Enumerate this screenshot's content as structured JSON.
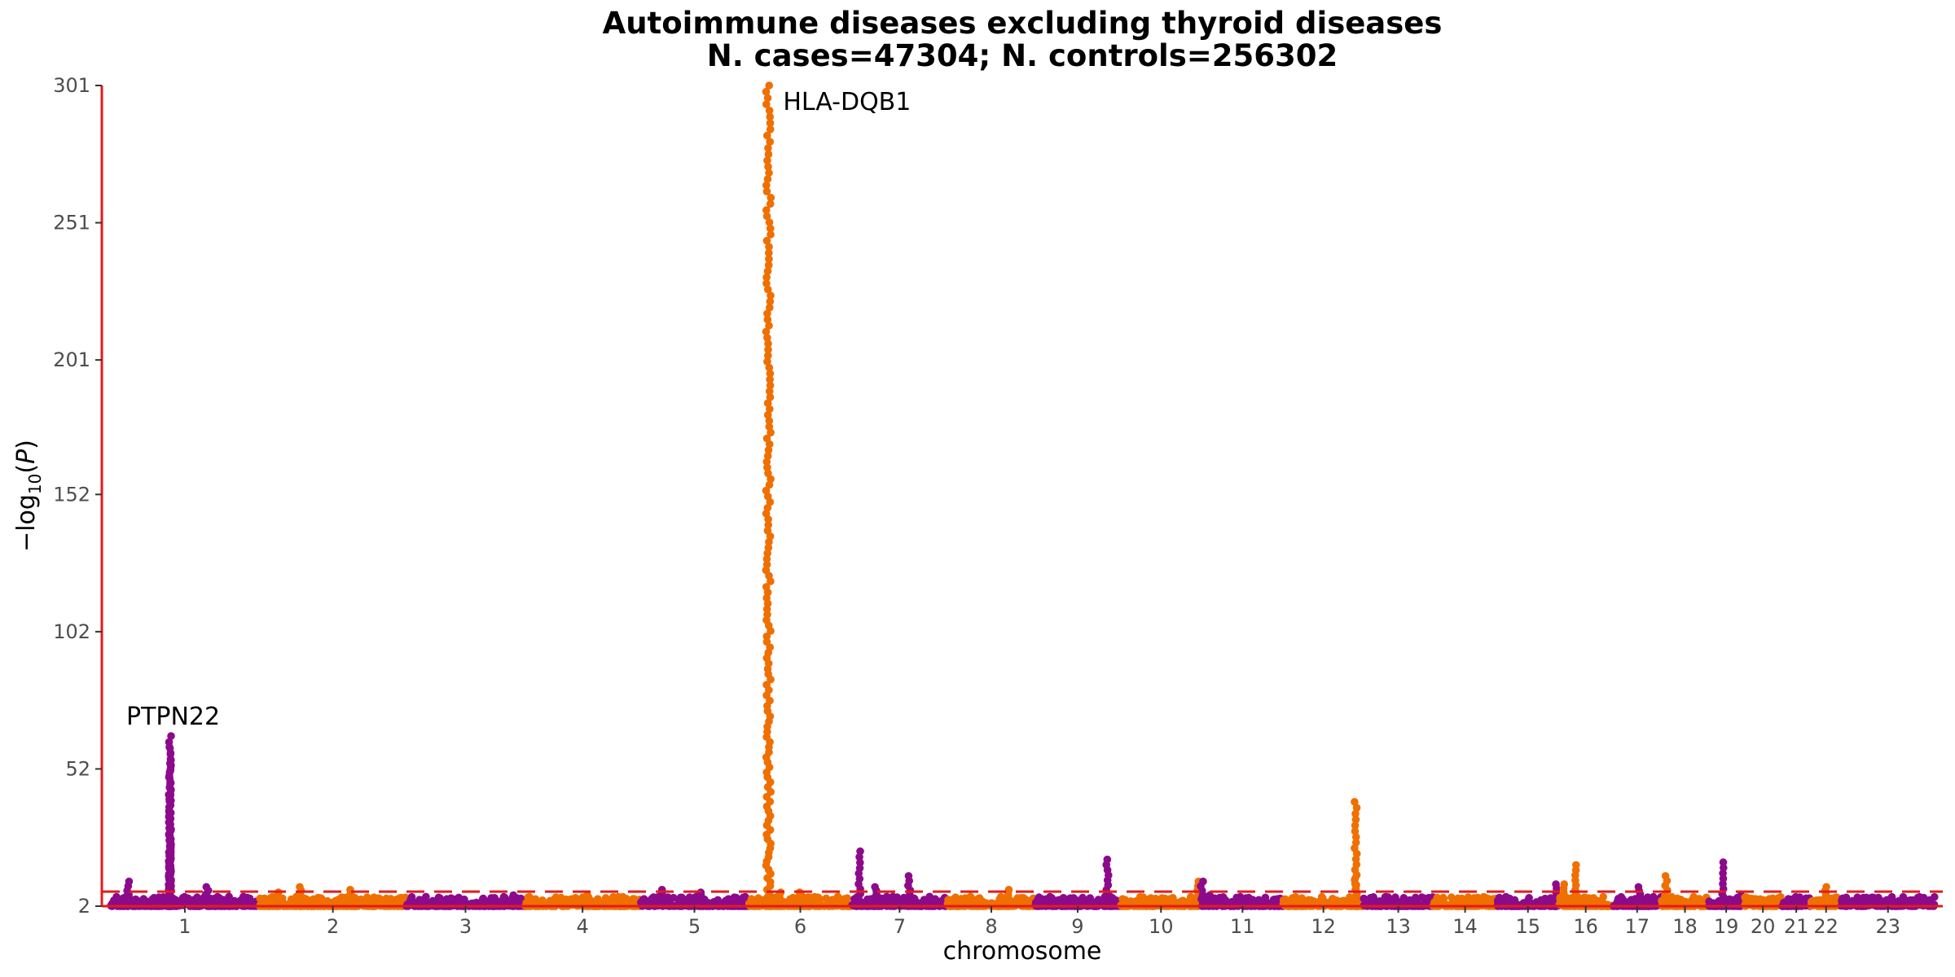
{
  "chart_data": {
    "type": "scatter",
    "subtype": "manhattan",
    "title": "Autoimmune diseases excluding thyroid diseases",
    "subtitle": "N. cases=47304; N. controls=256302",
    "xlabel": "chromosome",
    "ylabel": "−log10(P)",
    "ylim": [
      2,
      301
    ],
    "y_ticks": [
      2,
      52,
      102,
      152,
      201,
      251,
      301
    ],
    "x_ticks": [
      "1",
      "2",
      "3",
      "4",
      "5",
      "6",
      "7",
      "8",
      "9",
      "10",
      "11",
      "12",
      "13",
      "14",
      "15",
      "16",
      "17",
      "18",
      "19",
      "20",
      "21",
      "22",
      "23"
    ],
    "threshold": 7.3,
    "colors": {
      "odd": "#8b0b8b",
      "even": "#ef6f00",
      "axis": "#e41a1c",
      "threshold": "#e41a1c"
    },
    "chromosomes": [
      {
        "chr": "1",
        "len": 249,
        "peaks": [
          [
            0.4,
            64
          ],
          [
            0.4,
            60
          ],
          [
            0.4,
            54
          ],
          [
            0.4,
            36
          ],
          [
            0.4,
            30
          ],
          [
            0.4,
            26
          ],
          [
            0.12,
            11
          ],
          [
            0.65,
            9
          ]
        ]
      },
      {
        "chr": "2",
        "len": 243,
        "peaks": [
          [
            0.28,
            9
          ],
          [
            0.62,
            8
          ],
          [
            0.12,
            7
          ]
        ]
      },
      {
        "chr": "3",
        "len": 198,
        "peaks": [
          [
            0.9,
            6
          ]
        ]
      },
      {
        "chr": "4",
        "len": 191,
        "peaks": [
          [
            0.55,
            6
          ]
        ]
      },
      {
        "chr": "5",
        "len": 181,
        "peaks": [
          [
            0.2,
            8
          ],
          [
            0.55,
            7
          ]
        ]
      },
      {
        "chr": "6",
        "len": 171,
        "peaks": [
          [
            0.19,
            301
          ],
          [
            0.3,
            7
          ],
          [
            0.5,
            7
          ]
        ]
      },
      {
        "chr": "7",
        "len": 159,
        "peaks": [
          [
            0.08,
            22
          ],
          [
            0.6,
            13
          ],
          [
            0.25,
            9
          ]
        ]
      },
      {
        "chr": "8",
        "len": 146,
        "peaks": [
          [
            0.7,
            8
          ]
        ]
      },
      {
        "chr": "9",
        "len": 141,
        "peaks": [
          [
            0.85,
            19
          ]
        ]
      },
      {
        "chr": "10",
        "len": 136,
        "peaks": [
          [
            0.95,
            11
          ]
        ]
      },
      {
        "chr": "11",
        "len": 135,
        "peaks": [
          [
            0.0,
            11
          ],
          [
            0.1,
            6
          ]
        ]
      },
      {
        "chr": "12",
        "len": 134,
        "peaks": [
          [
            0.9,
            40
          ],
          [
            0.9,
            12
          ]
        ]
      },
      {
        "chr": "13",
        "len": 115,
        "peaks": []
      },
      {
        "chr": "14",
        "len": 107,
        "peaks": []
      },
      {
        "chr": "15",
        "len": 102,
        "peaks": [
          [
            0.95,
            10
          ]
        ]
      },
      {
        "chr": "16",
        "len": 90,
        "peaks": [
          [
            0.3,
            17
          ],
          [
            0.1,
            10
          ]
        ]
      },
      {
        "chr": "17",
        "len": 81,
        "peaks": [
          [
            0.55,
            9
          ]
        ]
      },
      {
        "chr": "18",
        "len": 78,
        "peaks": [
          [
            0.1,
            13
          ]
        ]
      },
      {
        "chr": "19",
        "len": 59,
        "peaks": [
          [
            0.4,
            18
          ],
          [
            0.9,
            6
          ]
        ]
      },
      {
        "chr": "20",
        "len": 63,
        "peaks": []
      },
      {
        "chr": "21",
        "len": 48,
        "peaks": []
      },
      {
        "chr": "22",
        "len": 51,
        "peaks": [
          [
            0.5,
            9
          ]
        ]
      },
      {
        "chr": "23",
        "len": 155,
        "peaks": []
      }
    ],
    "annotations": [
      {
        "label": "PTPN22",
        "chr": "1",
        "pos": 0.4,
        "y": 64
      },
      {
        "label": "HLA-DQB1",
        "chr": "6",
        "pos": 0.19,
        "y": 301
      }
    ]
  }
}
